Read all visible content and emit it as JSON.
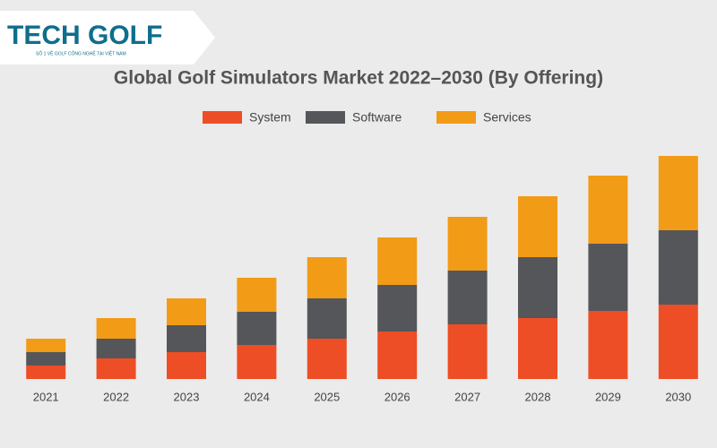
{
  "logo": {
    "name": "TECH GOLF",
    "tagline": "SỐ 1 VỀ GOLF CÔNG NGHỆ TẠI VIỆT NAM"
  },
  "chart_data": {
    "type": "stacked-bar",
    "title": "Global Golf Simulators Market 2022–2030 (By Offering)",
    "categories": [
      "2021",
      "2022",
      "2023",
      "2024",
      "2025",
      "2026",
      "2027",
      "2028",
      "2029",
      "2030"
    ],
    "series": [
      {
        "name": "System",
        "color": "#ee4e25",
        "values": [
          15,
          23,
          30,
          38,
          45,
          53,
          61,
          68,
          76,
          83
        ]
      },
      {
        "name": "Software",
        "color": "#545659",
        "values": [
          15,
          22,
          30,
          37,
          45,
          52,
          60,
          68,
          75,
          83
        ]
      },
      {
        "name": "Services",
        "color": "#f29b17",
        "values": [
          15,
          23,
          30,
          38,
          46,
          53,
          60,
          68,
          76,
          83
        ]
      }
    ],
    "ylim": [
      0,
      250
    ]
  }
}
